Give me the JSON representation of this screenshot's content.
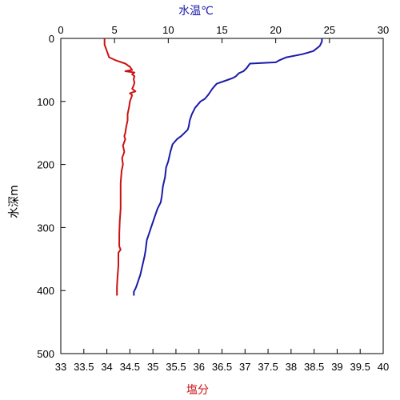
{
  "chart_data": {
    "type": "line",
    "top_axis_label": "水温℃",
    "bottom_axis_label": "塩分",
    "left_axis_label": "水深m",
    "y_axis": {
      "range": [
        0,
        500
      ],
      "inverted": true,
      "ticks": [
        0,
        100,
        200,
        300,
        400,
        500
      ]
    },
    "top_axis": {
      "range": [
        0,
        30
      ],
      "ticks": [
        0,
        5,
        10,
        15,
        20,
        25,
        30
      ]
    },
    "bottom_axis": {
      "range": [
        33,
        40
      ],
      "ticks": [
        33,
        33.5,
        34,
        34.5,
        35,
        35.5,
        36,
        36.5,
        37,
        37.5,
        38,
        38.5,
        39,
        39.5,
        40
      ]
    },
    "grid": false,
    "colors": {
      "temperature": "#1a1aaa",
      "salinity": "#cc1111",
      "top_axis_text": "#1a1aaa",
      "bottom_axis_text": "#cc1111"
    },
    "series": [
      {
        "axis": "top",
        "points": [
          [
            24.3,
            0
          ],
          [
            24.3,
            5
          ],
          [
            24.1,
            12
          ],
          [
            23.5,
            20
          ],
          [
            22.5,
            25
          ],
          [
            21.0,
            30
          ],
          [
            20.3,
            35
          ],
          [
            20.0,
            38
          ],
          [
            17.6,
            40
          ],
          [
            17.3,
            47
          ],
          [
            17.0,
            52
          ],
          [
            16.6,
            55
          ],
          [
            16.4,
            58
          ],
          [
            16.3,
            60
          ],
          [
            16.0,
            63
          ],
          [
            15.5,
            66
          ],
          [
            14.5,
            72
          ],
          [
            14.1,
            80
          ],
          [
            13.9,
            85
          ],
          [
            13.7,
            90
          ],
          [
            13.4,
            96
          ],
          [
            13.0,
            100
          ],
          [
            12.5,
            110
          ],
          [
            12.2,
            120
          ],
          [
            12.0,
            130
          ],
          [
            11.9,
            140
          ],
          [
            11.8,
            145
          ],
          [
            11.5,
            150
          ],
          [
            11.2,
            155
          ],
          [
            10.8,
            160
          ],
          [
            10.4,
            168
          ],
          [
            10.2,
            180
          ],
          [
            10.0,
            195
          ],
          [
            9.8,
            205
          ],
          [
            9.7,
            220
          ],
          [
            9.5,
            235
          ],
          [
            9.4,
            250
          ],
          [
            9.3,
            260
          ],
          [
            9.0,
            270
          ],
          [
            8.8,
            280
          ],
          [
            8.6,
            290
          ],
          [
            8.4,
            300
          ],
          [
            8.2,
            310
          ],
          [
            8.0,
            320
          ],
          [
            7.9,
            335
          ],
          [
            7.8,
            345
          ],
          [
            7.6,
            360
          ],
          [
            7.4,
            375
          ],
          [
            7.2,
            385
          ],
          [
            7.0,
            395
          ],
          [
            6.8,
            402
          ],
          [
            6.8,
            408
          ]
        ]
      },
      {
        "axis": "bottom",
        "points": [
          [
            33.95,
            0
          ],
          [
            33.95,
            10
          ],
          [
            34.0,
            20
          ],
          [
            34.05,
            30
          ],
          [
            34.2,
            35
          ],
          [
            34.4,
            40
          ],
          [
            34.5,
            45
          ],
          [
            34.55,
            50
          ],
          [
            34.4,
            52
          ],
          [
            34.6,
            54
          ],
          [
            34.55,
            57
          ],
          [
            34.6,
            60
          ],
          [
            34.58,
            65
          ],
          [
            34.6,
            70
          ],
          [
            34.58,
            75
          ],
          [
            34.55,
            80
          ],
          [
            34.62,
            84
          ],
          [
            34.5,
            87
          ],
          [
            34.55,
            90
          ],
          [
            34.5,
            100
          ],
          [
            34.48,
            110
          ],
          [
            34.45,
            120
          ],
          [
            34.45,
            130
          ],
          [
            34.42,
            140
          ],
          [
            34.4,
            150
          ],
          [
            34.38,
            155
          ],
          [
            34.4,
            160
          ],
          [
            34.35,
            170
          ],
          [
            34.38,
            180
          ],
          [
            34.33,
            190
          ],
          [
            34.35,
            200
          ],
          [
            34.32,
            210
          ],
          [
            34.3,
            230
          ],
          [
            34.3,
            250
          ],
          [
            34.3,
            270
          ],
          [
            34.28,
            290
          ],
          [
            34.27,
            310
          ],
          [
            34.27,
            330
          ],
          [
            34.3,
            335
          ],
          [
            34.25,
            340
          ],
          [
            34.25,
            360
          ],
          [
            34.23,
            380
          ],
          [
            34.22,
            395
          ],
          [
            34.22,
            408
          ]
        ]
      }
    ]
  }
}
